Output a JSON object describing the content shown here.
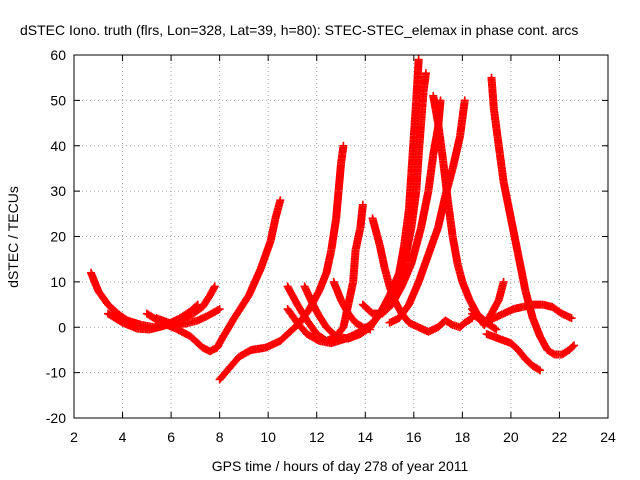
{
  "chart_data": {
    "type": "scatter",
    "title": "dSTEC Iono. truth (flrs, Lon=328, Lat=39, h=80): STEC-STEC_elemax in phase cont. arcs",
    "xlabel": "GPS time / hours of day 278 of year 2011",
    "ylabel": "dSTEC  / TECUs",
    "xlim": [
      2,
      24
    ],
    "ylim": [
      -20,
      60
    ],
    "xticks": [
      2,
      4,
      6,
      8,
      10,
      12,
      14,
      16,
      18,
      20,
      22,
      24
    ],
    "yticks": [
      -20,
      -10,
      0,
      10,
      20,
      30,
      40,
      50,
      60
    ],
    "grid": true,
    "marker": "plus",
    "colors": {
      "series": "#ff0000",
      "grid": "#a0a0a0",
      "frame": "#000000"
    },
    "series": [
      {
        "points": [
          [
            2.7,
            12
          ],
          [
            3.0,
            8
          ],
          [
            3.4,
            5
          ],
          [
            3.8,
            3
          ],
          [
            4.2,
            1.5
          ],
          [
            4.8,
            0.5
          ],
          [
            5.3,
            0
          ],
          [
            5.8,
            0.5
          ],
          [
            6.3,
            1.5
          ],
          [
            6.9,
            3
          ],
          [
            7.3,
            4.5
          ],
          [
            7.6,
            7
          ],
          [
            7.8,
            9
          ]
        ]
      },
      {
        "points": [
          [
            3.4,
            3
          ],
          [
            4.0,
            1
          ],
          [
            4.6,
            -0.3
          ],
          [
            5.1,
            -0.5
          ],
          [
            5.7,
            0.3
          ],
          [
            6.3,
            1.8
          ],
          [
            6.8,
            3.5
          ],
          [
            7.1,
            5
          ]
        ]
      },
      {
        "points": [
          [
            5.0,
            3
          ],
          [
            5.6,
            1
          ],
          [
            6.2,
            -0.3
          ],
          [
            6.8,
            -2
          ],
          [
            7.3,
            -4.5
          ],
          [
            7.6,
            -5.3
          ],
          [
            7.9,
            -4.5
          ],
          [
            8.1,
            -2.5
          ],
          [
            8.6,
            2
          ],
          [
            9.2,
            7
          ],
          [
            9.7,
            13
          ],
          [
            10.1,
            19
          ],
          [
            10.3,
            24
          ],
          [
            10.5,
            28
          ]
        ]
      },
      {
        "points": [
          [
            5.4,
            2
          ],
          [
            6.0,
            0.8
          ],
          [
            6.6,
            0.8
          ],
          [
            7.1,
            1.5
          ],
          [
            7.5,
            2.5
          ],
          [
            8.0,
            4
          ]
        ]
      },
      {
        "points": [
          [
            8.0,
            -11.5
          ],
          [
            8.4,
            -9
          ],
          [
            8.8,
            -6.5
          ],
          [
            9.3,
            -5
          ],
          [
            9.9,
            -4.5
          ],
          [
            10.5,
            -3
          ],
          [
            10.9,
            -1
          ],
          [
            11.3,
            1
          ],
          [
            11.7,
            4
          ],
          [
            12.1,
            8
          ],
          [
            12.4,
            12
          ],
          [
            12.6,
            17
          ],
          [
            12.8,
            24
          ],
          [
            12.9,
            30
          ],
          [
            13.0,
            36
          ],
          [
            13.1,
            40
          ]
        ]
      },
      {
        "points": [
          [
            10.8,
            9
          ],
          [
            11.2,
            5
          ],
          [
            11.6,
            1.5
          ],
          [
            12.0,
            -1.5
          ],
          [
            12.4,
            -3
          ],
          [
            12.8,
            -2
          ],
          [
            13.1,
            0
          ],
          [
            13.3,
            5
          ],
          [
            13.5,
            10
          ],
          [
            13.6,
            17
          ],
          [
            13.8,
            22
          ],
          [
            13.9,
            27
          ]
        ]
      },
      {
        "points": [
          [
            10.8,
            4
          ],
          [
            11.2,
            1
          ],
          [
            11.6,
            -1.5
          ],
          [
            12.1,
            -3
          ],
          [
            12.6,
            -3.5
          ],
          [
            13.2,
            -2.5
          ],
          [
            13.8,
            -1
          ],
          [
            14.3,
            1
          ],
          [
            14.8,
            4
          ],
          [
            15.2,
            8
          ],
          [
            15.6,
            14
          ],
          [
            15.9,
            22
          ],
          [
            16.1,
            30
          ],
          [
            16.2,
            38
          ],
          [
            16.3,
            45
          ],
          [
            16.4,
            52
          ],
          [
            16.5,
            56
          ]
        ]
      },
      {
        "points": [
          [
            11.5,
            9
          ],
          [
            11.8,
            5.5
          ],
          [
            12.1,
            2.5
          ],
          [
            12.4,
            0
          ],
          [
            12.8,
            -2
          ],
          [
            13.3,
            -2.5
          ],
          [
            13.8,
            -1.5
          ],
          [
            14.2,
            0
          ],
          [
            14.6,
            3
          ],
          [
            15.0,
            7
          ],
          [
            15.4,
            12
          ],
          [
            15.6,
            18
          ],
          [
            15.8,
            26
          ],
          [
            15.9,
            34
          ],
          [
            16.0,
            42
          ],
          [
            16.1,
            50
          ],
          [
            16.2,
            59
          ]
        ]
      },
      {
        "points": [
          [
            12.7,
            10
          ],
          [
            13.0,
            6
          ],
          [
            13.3,
            3
          ],
          [
            13.6,
            1
          ],
          [
            13.9,
            0
          ],
          [
            14.2,
            -0.5
          ]
        ]
      },
      {
        "points": [
          [
            14.3,
            24
          ],
          [
            14.6,
            18
          ],
          [
            14.8,
            13
          ],
          [
            15.0,
            9
          ],
          [
            15.2,
            6
          ],
          [
            15.5,
            3
          ],
          [
            15.8,
            1
          ],
          [
            16.2,
            0
          ],
          [
            16.6,
            -1
          ],
          [
            17.0,
            0
          ],
          [
            17.3,
            1.5
          ],
          [
            17.6,
            0.5
          ],
          [
            17.9,
            0
          ],
          [
            18.1,
            1
          ],
          [
            18.4,
            2
          ]
        ]
      },
      {
        "points": [
          [
            13.9,
            5
          ],
          [
            14.3,
            3
          ],
          [
            14.7,
            3
          ],
          [
            15.1,
            5
          ],
          [
            15.5,
            9
          ],
          [
            15.9,
            14
          ],
          [
            16.3,
            22
          ],
          [
            16.6,
            30
          ],
          [
            16.8,
            38
          ],
          [
            17.0,
            44
          ],
          [
            17.1,
            50
          ]
        ]
      },
      {
        "points": [
          [
            16.8,
            51
          ],
          [
            17.0,
            45
          ],
          [
            17.2,
            37
          ],
          [
            17.4,
            28
          ],
          [
            17.6,
            20
          ],
          [
            17.8,
            14
          ],
          [
            18.0,
            10
          ],
          [
            18.3,
            6
          ],
          [
            18.6,
            3
          ],
          [
            19.0,
            1
          ],
          [
            19.4,
            -0.5
          ]
        ]
      },
      {
        "points": [
          [
            15.0,
            1
          ],
          [
            15.4,
            2
          ],
          [
            15.8,
            5
          ],
          [
            16.2,
            10
          ],
          [
            16.6,
            16
          ],
          [
            17.0,
            22
          ],
          [
            17.3,
            29
          ],
          [
            17.6,
            35
          ],
          [
            17.9,
            42
          ],
          [
            18.1,
            50
          ]
        ]
      },
      {
        "points": [
          [
            18.4,
            3
          ],
          [
            18.9,
            1
          ],
          [
            19.3,
            2
          ],
          [
            19.7,
            3
          ],
          [
            20.1,
            4
          ],
          [
            20.5,
            4.5
          ],
          [
            20.9,
            5
          ],
          [
            21.3,
            5
          ],
          [
            21.7,
            4.5
          ],
          [
            22.1,
            3
          ],
          [
            22.5,
            2
          ]
        ]
      },
      {
        "points": [
          [
            18.4,
            4
          ],
          [
            18.7,
            2
          ],
          [
            18.9,
            0.5
          ],
          [
            19.2,
            3
          ],
          [
            19.5,
            6
          ],
          [
            19.7,
            10
          ]
        ]
      },
      {
        "points": [
          [
            19.2,
            55
          ],
          [
            19.3,
            48
          ],
          [
            19.5,
            40
          ],
          [
            19.7,
            32
          ],
          [
            20.0,
            24
          ],
          [
            20.3,
            16
          ],
          [
            20.6,
            8
          ],
          [
            20.9,
            2
          ],
          [
            21.2,
            -2
          ],
          [
            21.5,
            -5
          ],
          [
            21.8,
            -6
          ],
          [
            22.1,
            -6
          ],
          [
            22.4,
            -5
          ],
          [
            22.6,
            -4
          ]
        ]
      },
      {
        "points": [
          [
            19.0,
            -1.5
          ],
          [
            19.5,
            -2.5
          ],
          [
            20.0,
            -3.5
          ],
          [
            20.3,
            -5
          ],
          [
            20.6,
            -7
          ],
          [
            20.9,
            -8.5
          ],
          [
            21.2,
            -9.5
          ]
        ]
      }
    ]
  }
}
